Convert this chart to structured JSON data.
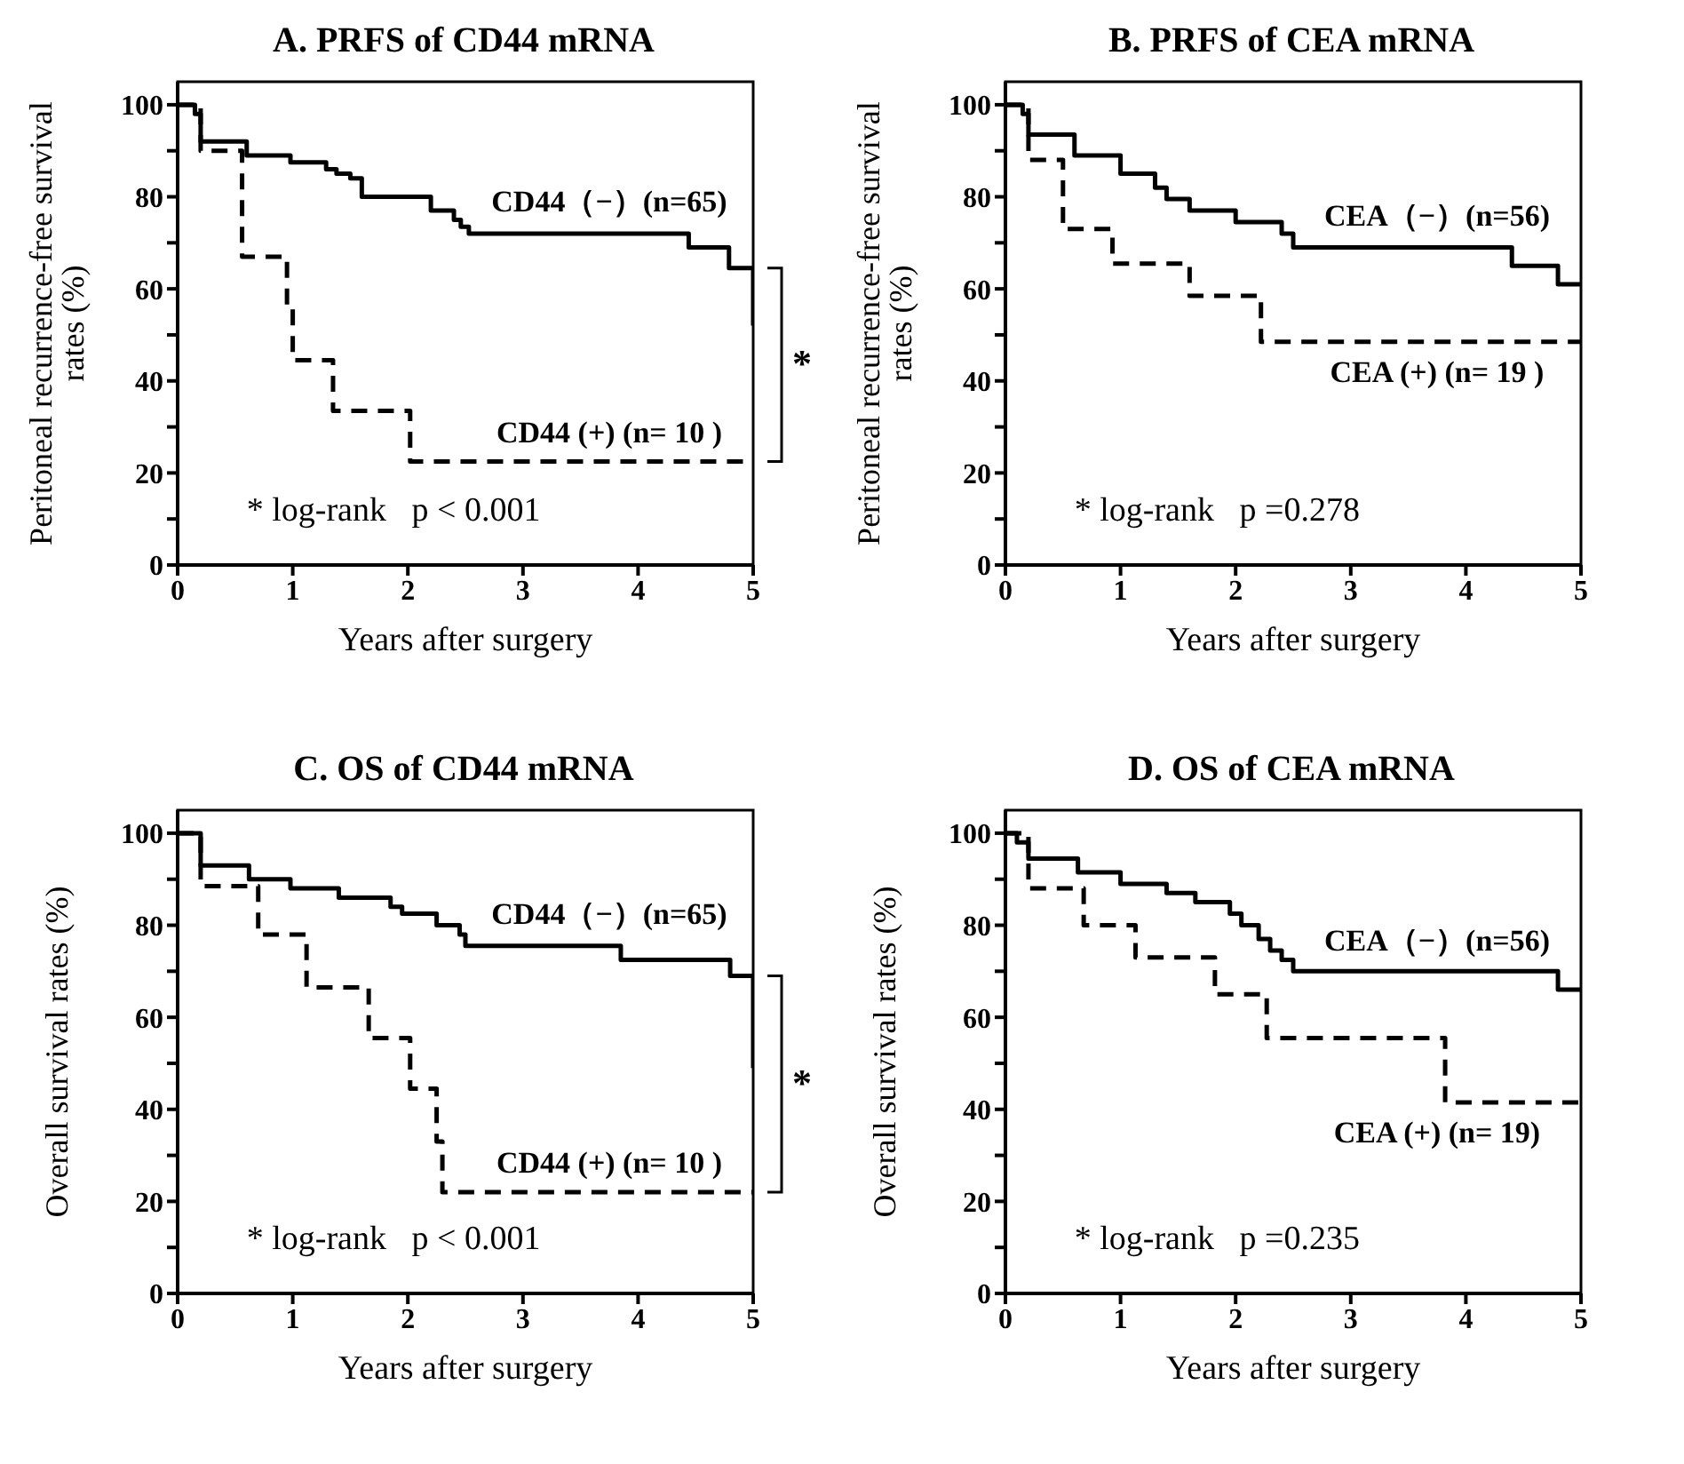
{
  "chart_data": [
    {
      "type": "step",
      "title": "A. PRFS of CD44 mRNA",
      "xlabel": "Years after surgery",
      "ylabel": "Peritoneal recurrence-free survival rates (%)",
      "xlim": [
        0,
        5
      ],
      "xticks": [
        0,
        1,
        2,
        3,
        4,
        5
      ],
      "ylim": [
        0,
        105
      ],
      "yticks": [
        0,
        {
          "value": 10,
          "label": null
        },
        20,
        {
          "value": 30,
          "label": null
        },
        40,
        {
          "value": 50,
          "label": null
        },
        60,
        {
          "value": 70,
          "label": null
        },
        80,
        {
          "value": 90,
          "label": null
        },
        100
      ],
      "marker": "none",
      "annotations": [
        "* log-rank   p < 0.001",
        "*"
      ],
      "series": [
        {
          "name": "CD44（−）(n=65)",
          "color": "#000000",
          "line_style": "solid",
          "x": [
            0,
            0.15,
            0.2,
            0.6,
            0.98,
            1.29,
            1.38,
            1.5,
            1.6,
            2.2,
            2.4,
            2.46,
            2.53,
            4.44,
            4.79,
            5.0
          ],
          "values": [
            100,
            98,
            92,
            89,
            87.5,
            86,
            85,
            84,
            80,
            77,
            75,
            73.5,
            72,
            69,
            64.5,
            52
          ]
        },
        {
          "name": "CD44 (+) (n= 10 )",
          "color": "#000000",
          "line_style": "dashed",
          "x": [
            0,
            0.2,
            0.56,
            0.95,
            1.0,
            1.35,
            2.02,
            5.0
          ],
          "values": [
            100,
            90,
            67,
            56,
            44.5,
            33.5,
            22.5,
            22.5
          ]
        }
      ]
    },
    {
      "type": "step",
      "title": "B. PRFS of CEA mRNA",
      "xlabel": "Years after surgery",
      "ylabel": "Peritoneal recurrence-free survival rates (%)",
      "xlim": [
        0,
        5
      ],
      "xticks": [
        0,
        1,
        2,
        3,
        4,
        5
      ],
      "ylim": [
        0,
        105
      ],
      "yticks": [
        0,
        {
          "value": 10,
          "label": null
        },
        20,
        {
          "value": 30,
          "label": null
        },
        40,
        {
          "value": 50,
          "label": null
        },
        60,
        {
          "value": 70,
          "label": null
        },
        80,
        {
          "value": 90,
          "label": null
        },
        100
      ],
      "marker": "none",
      "annotations": [
        "* log-rank   p =0.278"
      ],
      "series": [
        {
          "name": "CEA（−）(n=56)",
          "color": "#000000",
          "line_style": "solid",
          "x": [
            0,
            0.15,
            0.2,
            0.6,
            1.0,
            1.3,
            1.4,
            1.6,
            2.0,
            2.4,
            2.5,
            4.4,
            4.8,
            5.0
          ],
          "values": [
            100,
            98,
            93.5,
            89,
            85,
            82,
            79.5,
            77,
            74.5,
            72,
            69,
            65,
            61,
            61
          ]
        },
        {
          "name": "CEA (+) (n= 19 )",
          "color": "#000000",
          "line_style": "dashed",
          "x": [
            0,
            0.2,
            0.5,
            0.93,
            1.6,
            2.22,
            5.0
          ],
          "values": [
            100,
            88,
            73,
            65.5,
            58.5,
            48.5,
            48.5
          ]
        }
      ]
    },
    {
      "type": "step",
      "title": "C. OS of CD44 mRNA",
      "xlabel": "Years after surgery",
      "ylabel": "Overall survival rates (%)",
      "xlim": [
        0,
        5
      ],
      "xticks": [
        0,
        1,
        2,
        3,
        4,
        5
      ],
      "ylim": [
        0,
        105
      ],
      "yticks": [
        0,
        {
          "value": 10,
          "label": null
        },
        20,
        {
          "value": 30,
          "label": null
        },
        40,
        {
          "value": 50,
          "label": null
        },
        60,
        {
          "value": 70,
          "label": null
        },
        80,
        {
          "value": 90,
          "label": null
        },
        100
      ],
      "marker": "none",
      "annotations": [
        "* log-rank   p < 0.001",
        "*"
      ],
      "series": [
        {
          "name": "CD44（−）(n=65)",
          "color": "#000000",
          "line_style": "solid",
          "x": [
            0,
            0.2,
            0.62,
            0.98,
            1.4,
            1.85,
            1.95,
            2.25,
            2.45,
            2.5,
            3.85,
            4.8,
            5.0
          ],
          "values": [
            100,
            93,
            90,
            88,
            86,
            84,
            82.5,
            80,
            78,
            75.5,
            72.5,
            69,
            49
          ]
        },
        {
          "name": "CD44 (+) (n= 10 )",
          "color": "#000000",
          "line_style": "dashed",
          "x": [
            0,
            0.2,
            0.7,
            1.12,
            1.66,
            2.02,
            2.25,
            2.3,
            5.0
          ],
          "values": [
            100,
            88.5,
            78,
            66.5,
            55.5,
            44.5,
            33,
            22,
            22
          ]
        }
      ]
    },
    {
      "type": "step",
      "title": "D. OS of CEA mRNA",
      "xlabel": "Years after surgery",
      "ylabel": "Overall survival rates (%)",
      "xlim": [
        0,
        5
      ],
      "xticks": [
        0,
        1,
        2,
        3,
        4,
        5
      ],
      "ylim": [
        0,
        105
      ],
      "yticks": [
        0,
        {
          "value": 10,
          "label": null
        },
        20,
        {
          "value": 30,
          "label": null
        },
        40,
        {
          "value": 50,
          "label": null
        },
        60,
        {
          "value": 70,
          "label": null
        },
        80,
        {
          "value": 90,
          "label": null
        },
        100
      ],
      "marker": "none",
      "annotations": [
        "* log-rank   p =0.235"
      ],
      "series": [
        {
          "name": "CEA（−）(n=56)",
          "color": "#000000",
          "line_style": "solid",
          "x": [
            0,
            0.1,
            0.2,
            0.63,
            1.0,
            1.4,
            1.65,
            1.95,
            2.05,
            2.2,
            2.3,
            2.4,
            2.5,
            4.8,
            5.0
          ],
          "values": [
            100,
            98,
            94.5,
            91.5,
            89,
            87,
            85,
            82.5,
            80,
            77,
            74.5,
            72.5,
            70,
            66,
            66
          ]
        },
        {
          "name": "CEA (+) (n= 19)",
          "color": "#000000",
          "line_style": "dashed",
          "x": [
            0,
            0.2,
            0.68,
            1.13,
            1.82,
            2.27,
            3.82,
            5.0
          ],
          "values": [
            100,
            88,
            80,
            73,
            65,
            55.5,
            41.5,
            41.5
          ]
        }
      ]
    }
  ]
}
